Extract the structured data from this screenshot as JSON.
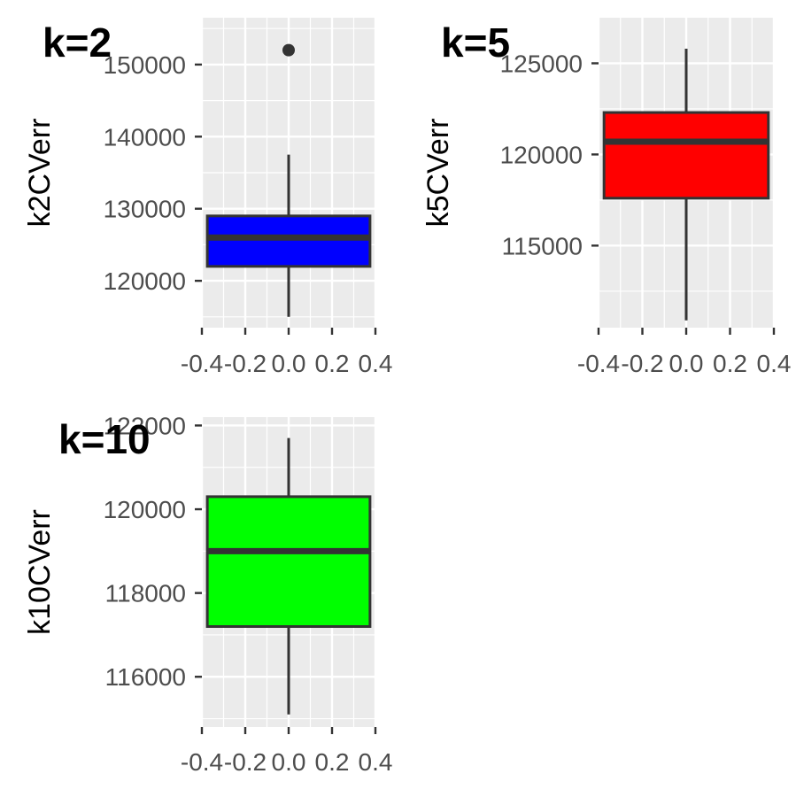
{
  "chart_data": [
    {
      "type": "boxplot",
      "tag": "k=2",
      "ylabel": "k2CVerr",
      "fill": "#0000FF",
      "ylim": [
        113500,
        156500
      ],
      "yticks": [
        120000,
        130000,
        140000,
        150000
      ],
      "ytick_labels": [
        "120000",
        "130000",
        "140000",
        "150000"
      ],
      "xlim": [
        -0.4,
        0.4
      ],
      "xticks": [
        -0.4,
        -0.2,
        0.0,
        0.2,
        0.4
      ],
      "xtick_labels": [
        "-0.4",
        "-0.2",
        "0.0",
        "0.2",
        "0.4"
      ],
      "box": {
        "lower_whisker": 115000,
        "q1": 122000,
        "median": 126000,
        "q3": 129000,
        "upper_whisker": 137500,
        "outliers": [
          152000
        ]
      },
      "grid": true
    },
    {
      "type": "boxplot",
      "tag": "k=5",
      "ylabel": "k5CVerr",
      "fill": "#FF0000",
      "ylim": [
        110500,
        127500
      ],
      "yticks": [
        115000,
        120000,
        125000
      ],
      "ytick_labels": [
        "115000",
        "120000",
        "125000"
      ],
      "xlim": [
        -0.4,
        0.4
      ],
      "xticks": [
        -0.4,
        -0.2,
        0.0,
        0.2,
        0.4
      ],
      "xtick_labels": [
        "-0.4",
        "-0.2",
        "0.0",
        "0.2",
        "0.4"
      ],
      "box": {
        "lower_whisker": 110900,
        "q1": 117600,
        "median": 120700,
        "q3": 122300,
        "upper_whisker": 125800,
        "outliers": []
      },
      "grid": true
    },
    {
      "type": "boxplot",
      "tag": "k=10",
      "ylabel": "k10CVerr",
      "fill": "#00FF00",
      "ylim": [
        114800,
        122200
      ],
      "yticks": [
        116000,
        118000,
        120000,
        122000
      ],
      "ytick_labels": [
        "116000",
        "118000",
        "120000",
        "122000"
      ],
      "xlim": [
        -0.4,
        0.4
      ],
      "xticks": [
        -0.4,
        -0.2,
        0.0,
        0.2,
        0.4
      ],
      "xtick_labels": [
        "-0.4",
        "-0.2",
        "0.0",
        "0.2",
        "0.4"
      ],
      "box": {
        "lower_whisker": 115100,
        "q1": 117200,
        "median": 119000,
        "q3": 120300,
        "upper_whisker": 121700,
        "outliers": []
      },
      "grid": true
    }
  ],
  "colors": {
    "panel_background": "#EBEBEB",
    "grid_line": "#FFFFFF",
    "box_outline": "#333333",
    "tick_label": "#4D4D4D",
    "axis_tick": "#333333"
  }
}
